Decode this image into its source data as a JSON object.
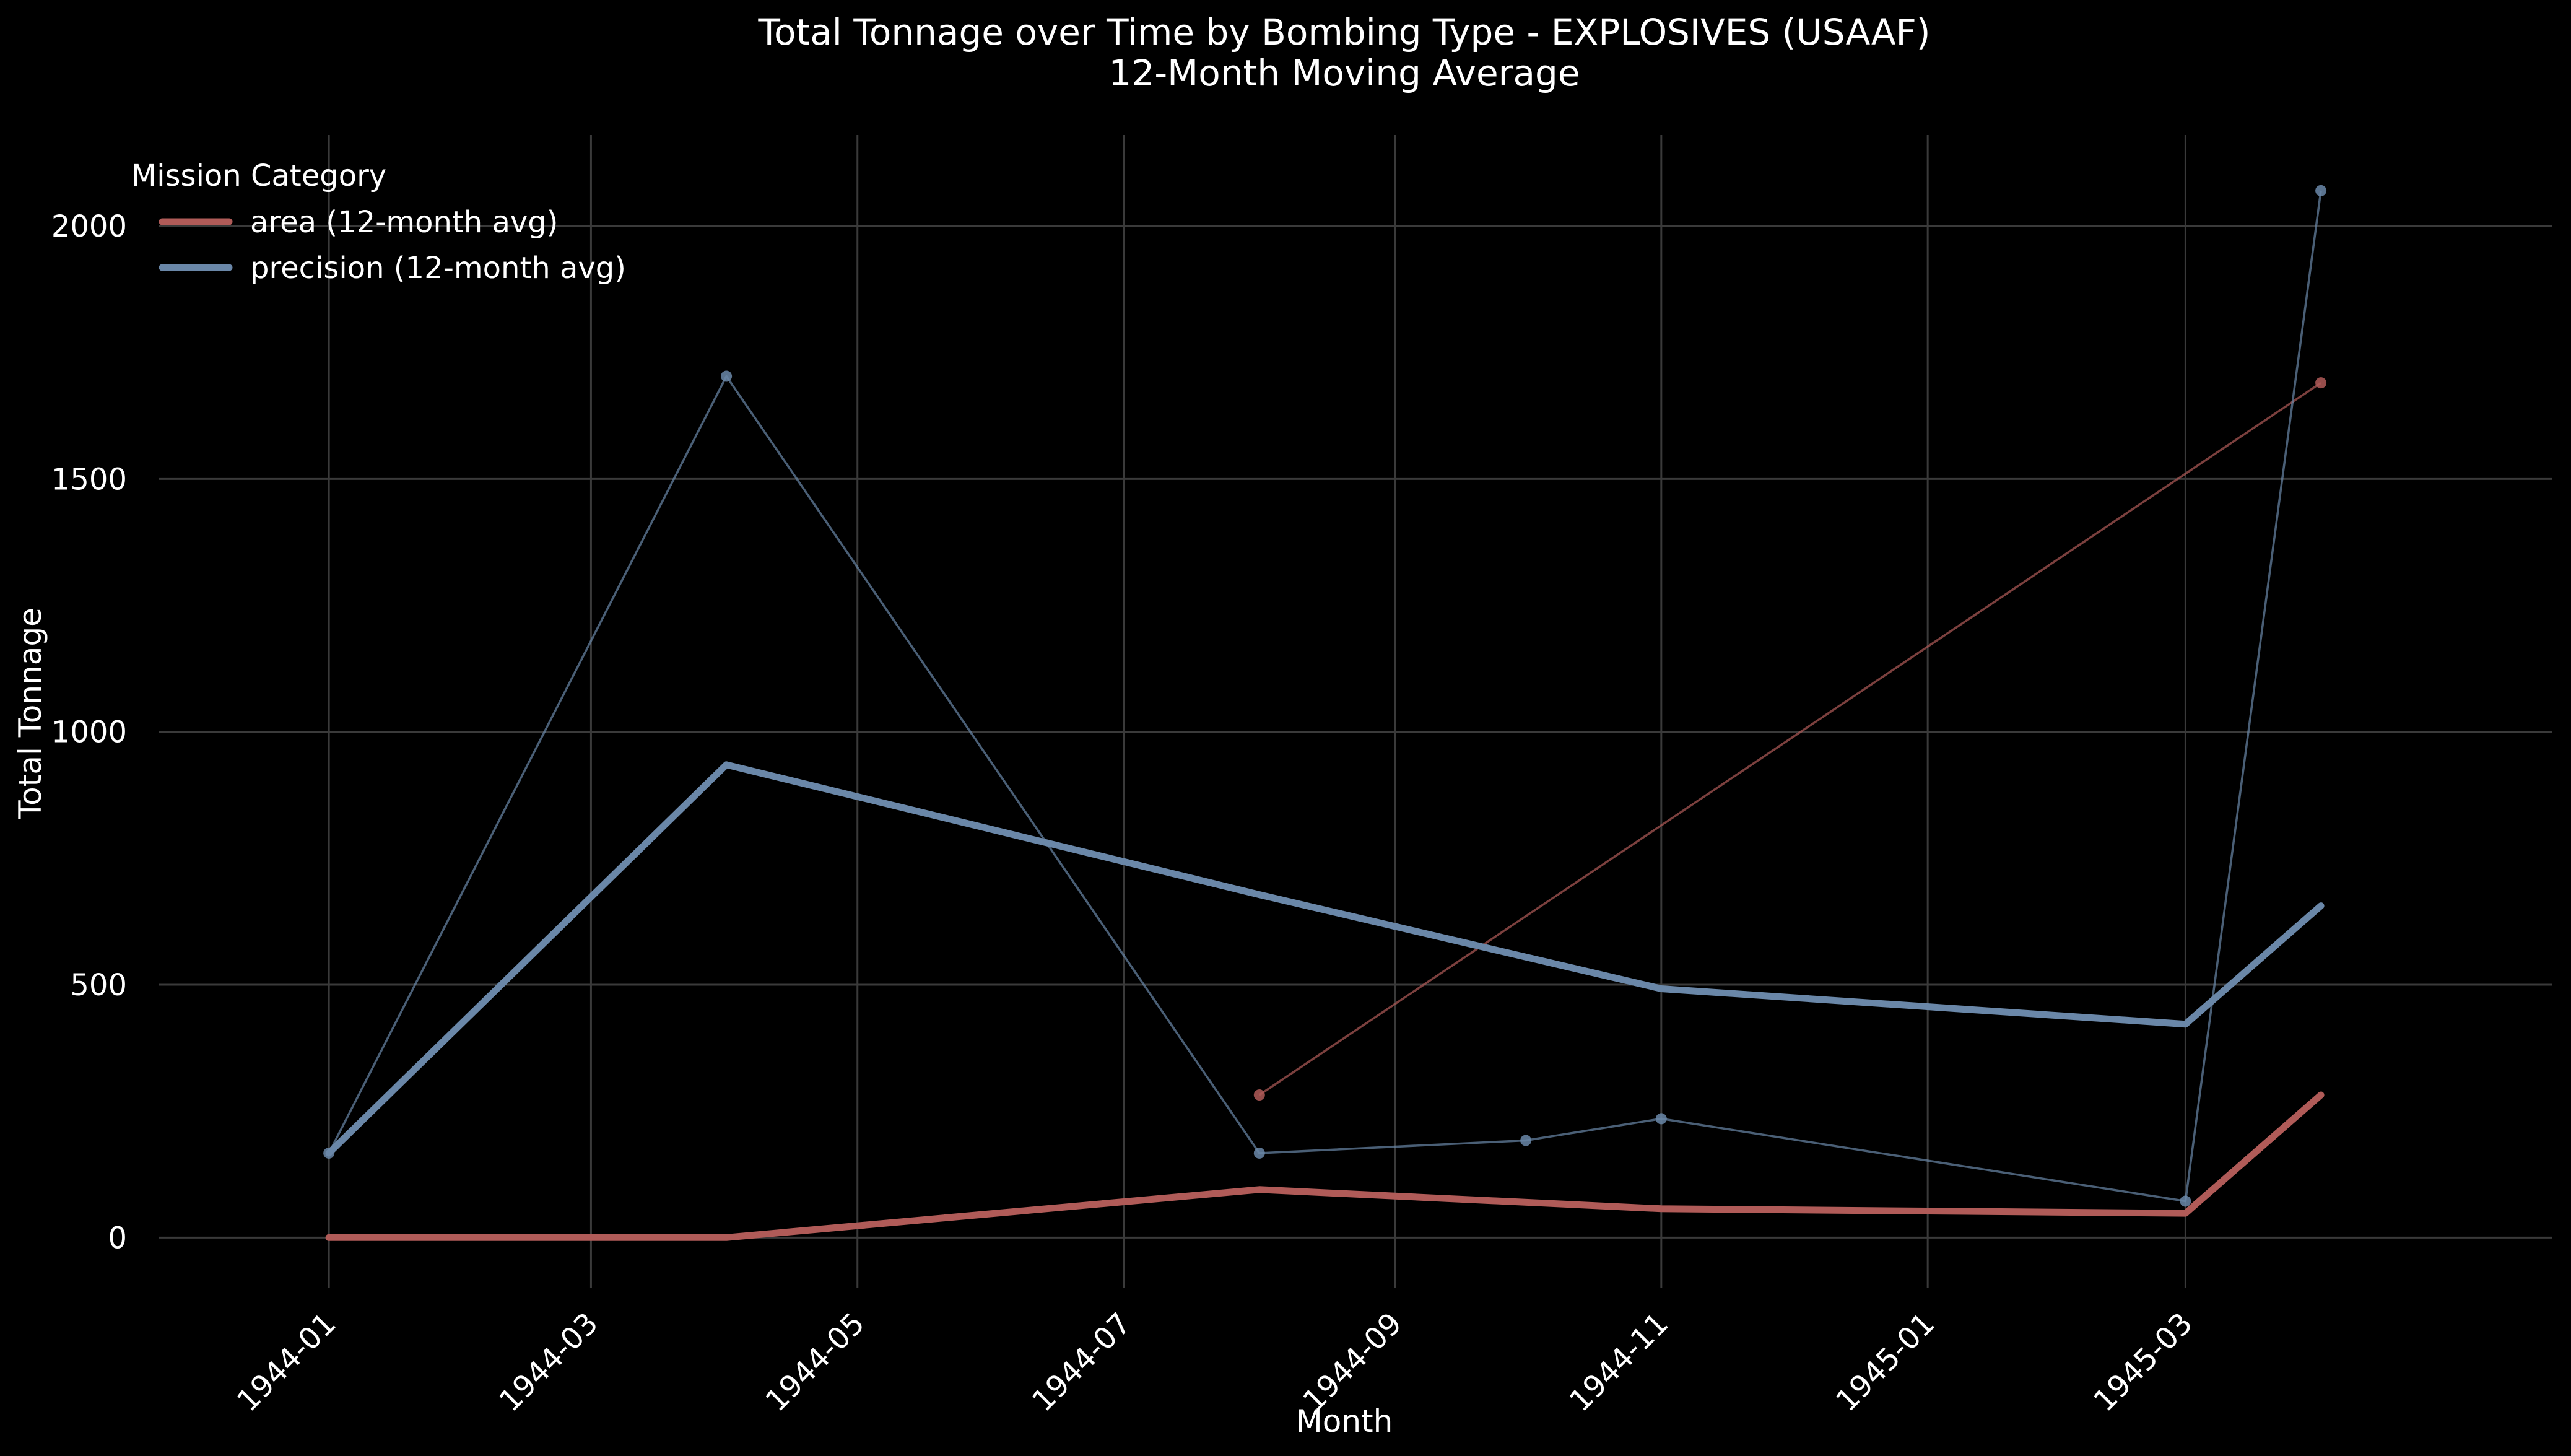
{
  "chart_data": {
    "type": "line",
    "title": "Total Tonnage over Time by Bombing Type - EXPLOSIVES (USAAF)",
    "subtitle": "12-Month Moving Average",
    "xlabel": "Month",
    "ylabel": "Total Tonnage",
    "x_ticks": [
      "1944-01",
      "1944-03",
      "1944-05",
      "1944-07",
      "1944-09",
      "1944-11",
      "1945-01",
      "1945-03"
    ],
    "y_ticks": [
      0,
      500,
      1000,
      1500,
      2000
    ],
    "xlim": [
      "1943-11-23",
      "1945-05-24"
    ],
    "ylim": [
      -100,
      2180
    ],
    "grid": true,
    "legend": {
      "title": "Mission Category",
      "placement": "top-left"
    },
    "colors": {
      "area": "#b05b58",
      "precision": "#6a87a8",
      "background": "#000000",
      "grid": "#3a3a3a"
    },
    "series": [
      {
        "name": "area (12-month avg)",
        "key": "area",
        "kind": "moving-average",
        "x": [
          "1944-01-01",
          "1944-04-01",
          "1944-08-01",
          "1944-11-01",
          "1945-03-01",
          "1945-04-01"
        ],
        "values": [
          0,
          0,
          95,
          57,
          48,
          282
        ]
      },
      {
        "name": "precision (12-month avg)",
        "key": "precision",
        "kind": "moving-average",
        "x": [
          "1944-01-01",
          "1944-04-01",
          "1944-08-01",
          "1944-11-01",
          "1945-03-01",
          "1945-04-01"
        ],
        "values": [
          167,
          935,
          678,
          492,
          422,
          656
        ]
      },
      {
        "key": "area",
        "kind": "raw",
        "x": [
          "1944-08-01",
          "1945-04-01"
        ],
        "values": [
          282,
          1690
        ]
      },
      {
        "key": "precision",
        "kind": "raw",
        "x": [
          "1944-01-01",
          "1944-04-01",
          "1944-08-01",
          "1944-10-01",
          "1944-11-01",
          "1945-03-01",
          "1945-04-01"
        ],
        "values": [
          167,
          1703,
          167,
          192,
          235,
          72,
          2070
        ]
      }
    ]
  }
}
